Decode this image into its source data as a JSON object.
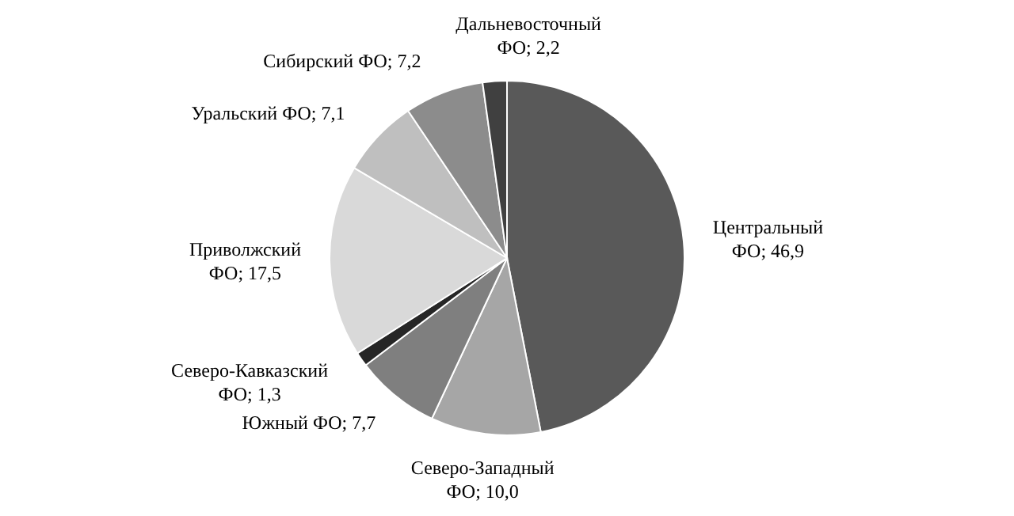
{
  "chart_data": {
    "type": "pie",
    "categories": [
      "Центральный ФО",
      "Северо-Западный ФО",
      "Южный ФО",
      "Северо-Кавказский ФО",
      "Приволжский ФО",
      "Уральский ФО",
      "Сибирский ФО",
      "Дальневосточный ФО"
    ],
    "values": [
      46.9,
      10.0,
      7.7,
      1.3,
      17.5,
      7.1,
      7.2,
      2.2
    ],
    "value_labels": [
      "46,9",
      "10,0",
      "7,7",
      "1,3",
      "17,5",
      "7,1",
      "7,2",
      "2,2"
    ],
    "colors": [
      "#595959",
      "#a6a6a6",
      "#7f7f7f",
      "#262626",
      "#d9d9d9",
      "#bfbfbf",
      "#8c8c8c",
      "#404040"
    ]
  }
}
